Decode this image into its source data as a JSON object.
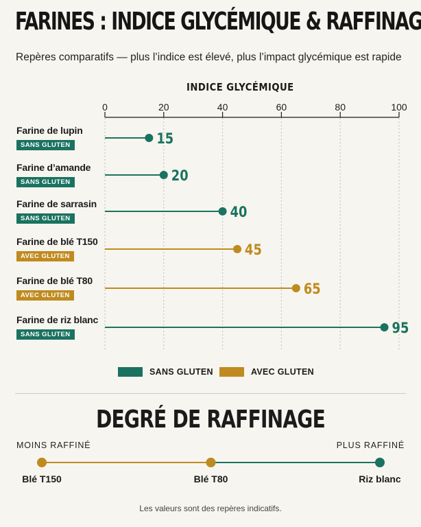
{
  "title": "FARINES : INDICE GLYCÉMIQUE & RAFFINAGE",
  "subtitle": "Repères comparatifs — plus l’indice est élevé, plus l’impact glycémique est rapide",
  "colors": {
    "sans_gluten": "#1a7260",
    "avec_gluten": "#bf8a1f",
    "grid": "#bdbab2",
    "text": "#1b1b1b"
  },
  "chart_data": {
    "type": "lollipop",
    "xlabel": "INDICE GLYCÉMIQUE",
    "xlim": [
      0,
      100
    ],
    "ticks": [
      0,
      20,
      40,
      60,
      80,
      100
    ],
    "grid": "vertical dashed",
    "categories": [
      "Farine de lupin",
      "Farine d’amande",
      "Farine de sarrasin",
      "Farine de blé T150",
      "Farine de blé T80",
      "Farine de riz blanc"
    ],
    "values": [
      15,
      20,
      40,
      45,
      65,
      95
    ],
    "groups": [
      "SANS GLUTEN",
      "SANS GLUTEN",
      "SANS GLUTEN",
      "AVEC GLUTEN",
      "AVEC GLUTEN",
      "SANS GLUTEN"
    ],
    "legend": {
      "placement": "bottom-center",
      "items": [
        {
          "label": "SANS GLUTEN",
          "color": "#1a7260"
        },
        {
          "label": "AVEC GLUTEN",
          "color": "#bf8a1f"
        }
      ]
    }
  },
  "raffinage": {
    "title": "DEGRÉ DE RAFFINAGE",
    "left_label": "MOINS RAFFINÉ",
    "right_label": "PLUS RAFFINÉ",
    "points": [
      {
        "label": "Blé T150",
        "level": 0,
        "group": "AVEC GLUTEN"
      },
      {
        "label": "Blé T80",
        "level": 0.5,
        "group": "AVEC GLUTEN"
      },
      {
        "label": "Riz blanc",
        "level": 1,
        "group": "SANS GLUTEN"
      }
    ]
  },
  "note": "Les valeurs sont des repères indicatifs."
}
